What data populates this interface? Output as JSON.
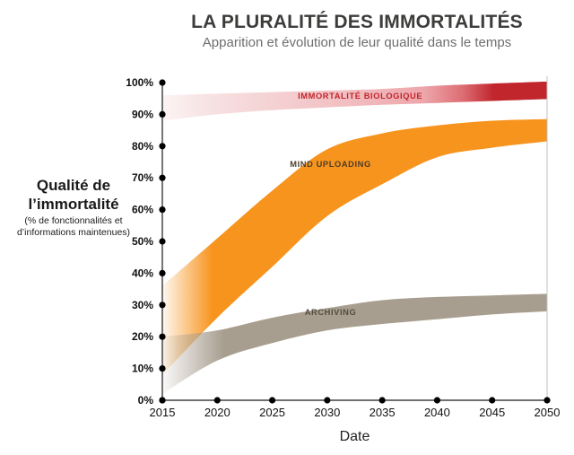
{
  "header": {
    "title": "LA PLURALITÉ DES IMMORTALITÉS",
    "subtitle": "Apparition et évolution de leur qualité dans le temps",
    "title_color": "#3c3c3b",
    "subtitle_color": "#6f6e6e"
  },
  "y_axis_block": {
    "line1": "Qualité de",
    "line2": "l’immortalité",
    "note1": "(% de fonctionnalités et",
    "note2": "d’informations maintenues)"
  },
  "chart_data": {
    "type": "area",
    "title": "LA PLURALITÉ DES IMMORTALITÉS",
    "subtitle": "Apparition et évolution de leur qualité dans le temps",
    "xlabel": "Date",
    "ylabel": "Qualité de l’immortalité (% de fonctionnalités et d’informations maintenues)",
    "x": [
      2015,
      2020,
      2025,
      2030,
      2035,
      2040,
      2045,
      2050
    ],
    "x_tick_labels": [
      "2015",
      "2020",
      "2025",
      "2030",
      "2035",
      "2040",
      "2045",
      "2050"
    ],
    "xlim": [
      2015,
      2050
    ],
    "ylim": [
      0,
      100
    ],
    "y_tick_labels": [
      "0%",
      "10%",
      "20%",
      "30%",
      "40%",
      "50%",
      "60%",
      "70%",
      "80%",
      "90%",
      "100%"
    ],
    "grid": false,
    "legend_position": "labels-on-bands",
    "axis_color": "#1a1a1a",
    "tick_dot_color": "#000000",
    "right_border_color": "#c2c2c2",
    "series": [
      {
        "name": "IMMORTALITÉ BIOLOGIQUE",
        "kind": "band",
        "top": [
          96,
          96.5,
          97,
          97.5,
          98,
          99,
          99.7,
          100.3
        ],
        "bottom": [
          88,
          90,
          91.3,
          92.2,
          93,
          93.6,
          94.2,
          94.8
        ],
        "label": {
          "text": "IMMORTALITÉ BIOLOGIQUE",
          "year": 2033,
          "pct": 94.9,
          "color": "#c1262d"
        },
        "gradient": [
          {
            "o": 0,
            "c": "#fcf4f4",
            "a": 1
          },
          {
            "o": 0.12,
            "c": "#f7e2e3",
            "a": 1
          },
          {
            "o": 0.5,
            "c": "#f1bcbf",
            "a": 1
          },
          {
            "o": 0.68,
            "c": "#eda6ab",
            "a": 1
          },
          {
            "o": 0.78,
            "c": "#dd6e74",
            "a": 1
          },
          {
            "o": 0.86,
            "c": "#c1262d",
            "a": 1
          },
          {
            "o": 1,
            "c": "#c1262d",
            "a": 1
          }
        ]
      },
      {
        "name": "MIND UPLOADING",
        "kind": "band",
        "top": [
          36,
          51,
          66,
          79,
          84,
          86.5,
          88,
          88.5
        ],
        "bottom": [
          8,
          26,
          42,
          58,
          68,
          76.5,
          79.5,
          81.5
        ],
        "label": {
          "text": "MIND UPLOADING",
          "year": 2030.3,
          "pct": 73.5,
          "color": "#4d3d2a"
        },
        "gradient": [
          {
            "o": 0,
            "c": "#f7941e",
            "a": 0.06
          },
          {
            "o": 0.13,
            "c": "#f7941e",
            "a": 1
          },
          {
            "o": 1,
            "c": "#f7941e",
            "a": 1
          }
        ]
      },
      {
        "name": "ARCHIVING",
        "kind": "band",
        "top": [
          20,
          22,
          26,
          29,
          31.5,
          32.5,
          33,
          33.5
        ],
        "bottom": [
          2,
          12.5,
          18,
          22,
          24,
          25.5,
          27,
          28
        ],
        "label": {
          "text": "ARCHIVING",
          "year": 2030.3,
          "pct": 26.8,
          "color": "#544c40"
        },
        "gradient": [
          {
            "o": 0,
            "c": "#a89e90",
            "a": 0.05
          },
          {
            "o": 0.16,
            "c": "#a89e90",
            "a": 1
          },
          {
            "o": 1,
            "c": "#a89e90",
            "a": 1
          }
        ]
      }
    ]
  }
}
